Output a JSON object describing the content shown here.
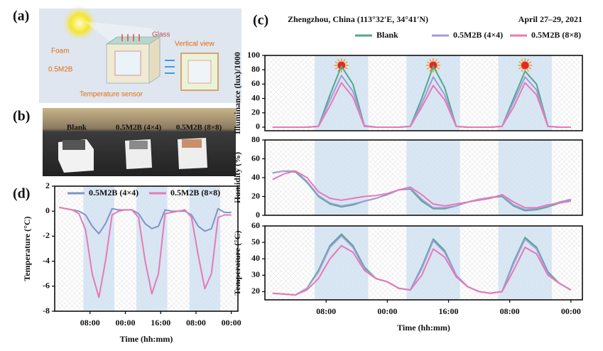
{
  "figure": {
    "labels": [
      "(a)",
      "(b)",
      "(c)",
      "(d)"
    ],
    "schematic": {
      "glass": "Glass",
      "foam": "Foam",
      "material": "0.5M2B",
      "sensor": "Temperature sensor",
      "view": "Vertical view"
    },
    "photo": [
      "Blank",
      "0.5M2B (4×4)",
      "0.5M2B (8×8)"
    ],
    "location": "Zhengzhou, China (113°32′E, 34°41′N)",
    "date": "April 27–29, 2021"
  },
  "chart_data": [
    {
      "type": "line",
      "ylabel": "Illuminance (lux)/1000",
      "ylim": [
        -5,
        100
      ],
      "yticks": [
        0,
        20,
        40,
        60,
        80,
        100
      ],
      "xlim": [
        -8,
        75
      ],
      "bands": [
        [
          5,
          19
        ],
        [
          29,
          43
        ],
        [
          53,
          67
        ]
      ],
      "x": [
        -6,
        -3,
        0,
        3,
        6,
        9,
        12,
        15,
        18,
        21,
        24,
        27,
        30,
        33,
        36,
        39,
        42,
        45,
        48,
        51,
        54,
        57,
        60,
        63,
        66,
        69,
        72
      ],
      "series": [
        {
          "name": "Blank",
          "color": "#4daa8a",
          "values": [
            0,
            0,
            0,
            0,
            1,
            45,
            85,
            60,
            2,
            0,
            0,
            0,
            1,
            40,
            85,
            55,
            1,
            0,
            0,
            0,
            1,
            40,
            78,
            60,
            1,
            0,
            0
          ]
        },
        {
          "name": "0.5M2B (4×4)",
          "color": "#a29bd6",
          "values": [
            0,
            0,
            0,
            0,
            1,
            38,
            72,
            50,
            2,
            0,
            0,
            0,
            1,
            33,
            70,
            45,
            1,
            0,
            0,
            0,
            1,
            35,
            70,
            52,
            1,
            0,
            0
          ]
        },
        {
          "name": "0.5M2B (8×8)",
          "color": "#e67ab6",
          "values": [
            0,
            0,
            0,
            0,
            1,
            30,
            62,
            42,
            1,
            0,
            0,
            0,
            1,
            28,
            58,
            38,
            1,
            0,
            0,
            0,
            1,
            28,
            62,
            45,
            1,
            0,
            0
          ]
        }
      ]
    },
    {
      "type": "line",
      "ylabel": "Humidity (%)",
      "ylim": [
        0,
        80
      ],
      "yticks": [
        0,
        20,
        40,
        60,
        80
      ],
      "xlim": [
        -8,
        75
      ],
      "bands": [
        [
          5,
          19
        ],
        [
          29,
          43
        ],
        [
          53,
          67
        ]
      ],
      "x": [
        -6,
        -3,
        0,
        3,
        6,
        9,
        12,
        15,
        18,
        21,
        24,
        27,
        30,
        33,
        36,
        39,
        42,
        45,
        48,
        51,
        54,
        57,
        60,
        63,
        66,
        69,
        72
      ],
      "series": [
        {
          "color": "#4daa8a",
          "values": [
            45,
            47,
            46,
            35,
            20,
            12,
            9,
            11,
            15,
            18,
            22,
            27,
            28,
            15,
            7,
            7,
            10,
            14,
            17,
            19,
            20,
            10,
            5,
            6,
            9,
            13,
            16
          ]
        },
        {
          "color": "#a29bd6",
          "values": [
            45,
            47,
            47,
            36,
            21,
            13,
            10,
            12,
            15,
            18,
            22,
            27,
            29,
            17,
            8,
            8,
            10,
            14,
            17,
            19,
            21,
            11,
            6,
            7,
            10,
            14,
            17
          ]
        },
        {
          "color": "#e67ab6",
          "values": [
            38,
            44,
            47,
            40,
            25,
            18,
            16,
            18,
            20,
            21,
            23,
            27,
            30,
            22,
            12,
            10,
            12,
            14,
            16,
            18,
            22,
            14,
            8,
            8,
            11,
            13,
            15
          ]
        }
      ]
    },
    {
      "type": "line",
      "ylabel": "Temperature (°C)",
      "xlabel": "Time (hh:mm)",
      "ylim": [
        15,
        60
      ],
      "yticks": [
        20,
        30,
        40,
        50,
        60
      ],
      "xlim": [
        -8,
        75
      ],
      "xticks": [
        {
          "value": 8,
          "label": "08:00"
        },
        {
          "value": 24,
          "label": "00:00"
        },
        {
          "value": 40,
          "label": "16:00"
        },
        {
          "value": 56,
          "label": "08:00"
        },
        {
          "value": 72,
          "label": "00:00"
        }
      ],
      "bands": [
        [
          5,
          19
        ],
        [
          29,
          43
        ],
        [
          53,
          67
        ]
      ],
      "x": [
        -6,
        -3,
        0,
        3,
        6,
        9,
        12,
        15,
        18,
        21,
        24,
        27,
        30,
        33,
        36,
        39,
        42,
        45,
        48,
        51,
        54,
        57,
        60,
        63,
        66,
        69,
        72
      ],
      "series": [
        {
          "color": "#4daa8a",
          "values": [
            19,
            18.5,
            18,
            22,
            33,
            48,
            55,
            48,
            35,
            28,
            26,
            22,
            21,
            35,
            52,
            45,
            30,
            23,
            20,
            19,
            20,
            38,
            53,
            47,
            32,
            25,
            21
          ]
        },
        {
          "color": "#a29bd6",
          "values": [
            19,
            18.5,
            18,
            22,
            32,
            47,
            54,
            47,
            34,
            28,
            26,
            22,
            21,
            34,
            51,
            44,
            30,
            23,
            20,
            19,
            20,
            37,
            52,
            46,
            31,
            25,
            21
          ]
        },
        {
          "color": "#e67ab6",
          "values": [
            19,
            18.5,
            18,
            21,
            28,
            40,
            48,
            44,
            33,
            28,
            26,
            22,
            21,
            30,
            46,
            41,
            29,
            23,
            20,
            19,
            20,
            33,
            47,
            43,
            30,
            25,
            21
          ]
        }
      ]
    },
    {
      "type": "line",
      "ylabel": "Temperature (°C)",
      "xlabel": "Time (hh:mm)",
      "ylim": [
        -8,
        2
      ],
      "yticks": [
        -8,
        -6,
        -4,
        -2,
        0,
        2
      ],
      "xlim": [
        -8,
        75
      ],
      "xticks": [
        {
          "value": 8,
          "label": "08:00"
        },
        {
          "value": 24,
          "label": "00:00"
        },
        {
          "value": 40,
          "label": "16:00"
        },
        {
          "value": 56,
          "label": "08:00"
        },
        {
          "value": 72,
          "label": "00:00"
        }
      ],
      "bands": [
        [
          5,
          19
        ],
        [
          29,
          43
        ],
        [
          53,
          67
        ]
      ],
      "x": [
        -6,
        -3,
        0,
        3,
        6,
        9,
        12,
        15,
        18,
        21,
        24,
        27,
        30,
        33,
        36,
        39,
        42,
        45,
        48,
        51,
        54,
        57,
        60,
        63,
        66,
        69,
        72
      ],
      "series": [
        {
          "name": "0.5M2B (4×4)",
          "color": "#8094c8",
          "values": [
            0.3,
            0.2,
            0.1,
            0,
            -0.3,
            -1.2,
            -1.8,
            -1.0,
            0.2,
            0.1,
            0.1,
            0.1,
            -0.2,
            -1.0,
            -1.4,
            -1.2,
            0.1,
            0,
            0,
            0,
            -0.3,
            -1.2,
            -1.6,
            -1.4,
            0.2,
            -0.1,
            -0.1
          ]
        },
        {
          "name": "0.5M2B (8×8)",
          "color": "#e67ab6",
          "values": [
            0.3,
            0.2,
            0.1,
            -0.2,
            -1.5,
            -5.0,
            -6.9,
            -4.0,
            -0.3,
            0,
            0.1,
            0.1,
            -0.5,
            -4.0,
            -6.6,
            -5.0,
            -0.2,
            -0.1,
            0,
            0.1,
            -0.5,
            -3.5,
            -6.2,
            -5.0,
            -0.5,
            -0.3,
            -0.3
          ]
        }
      ]
    }
  ]
}
